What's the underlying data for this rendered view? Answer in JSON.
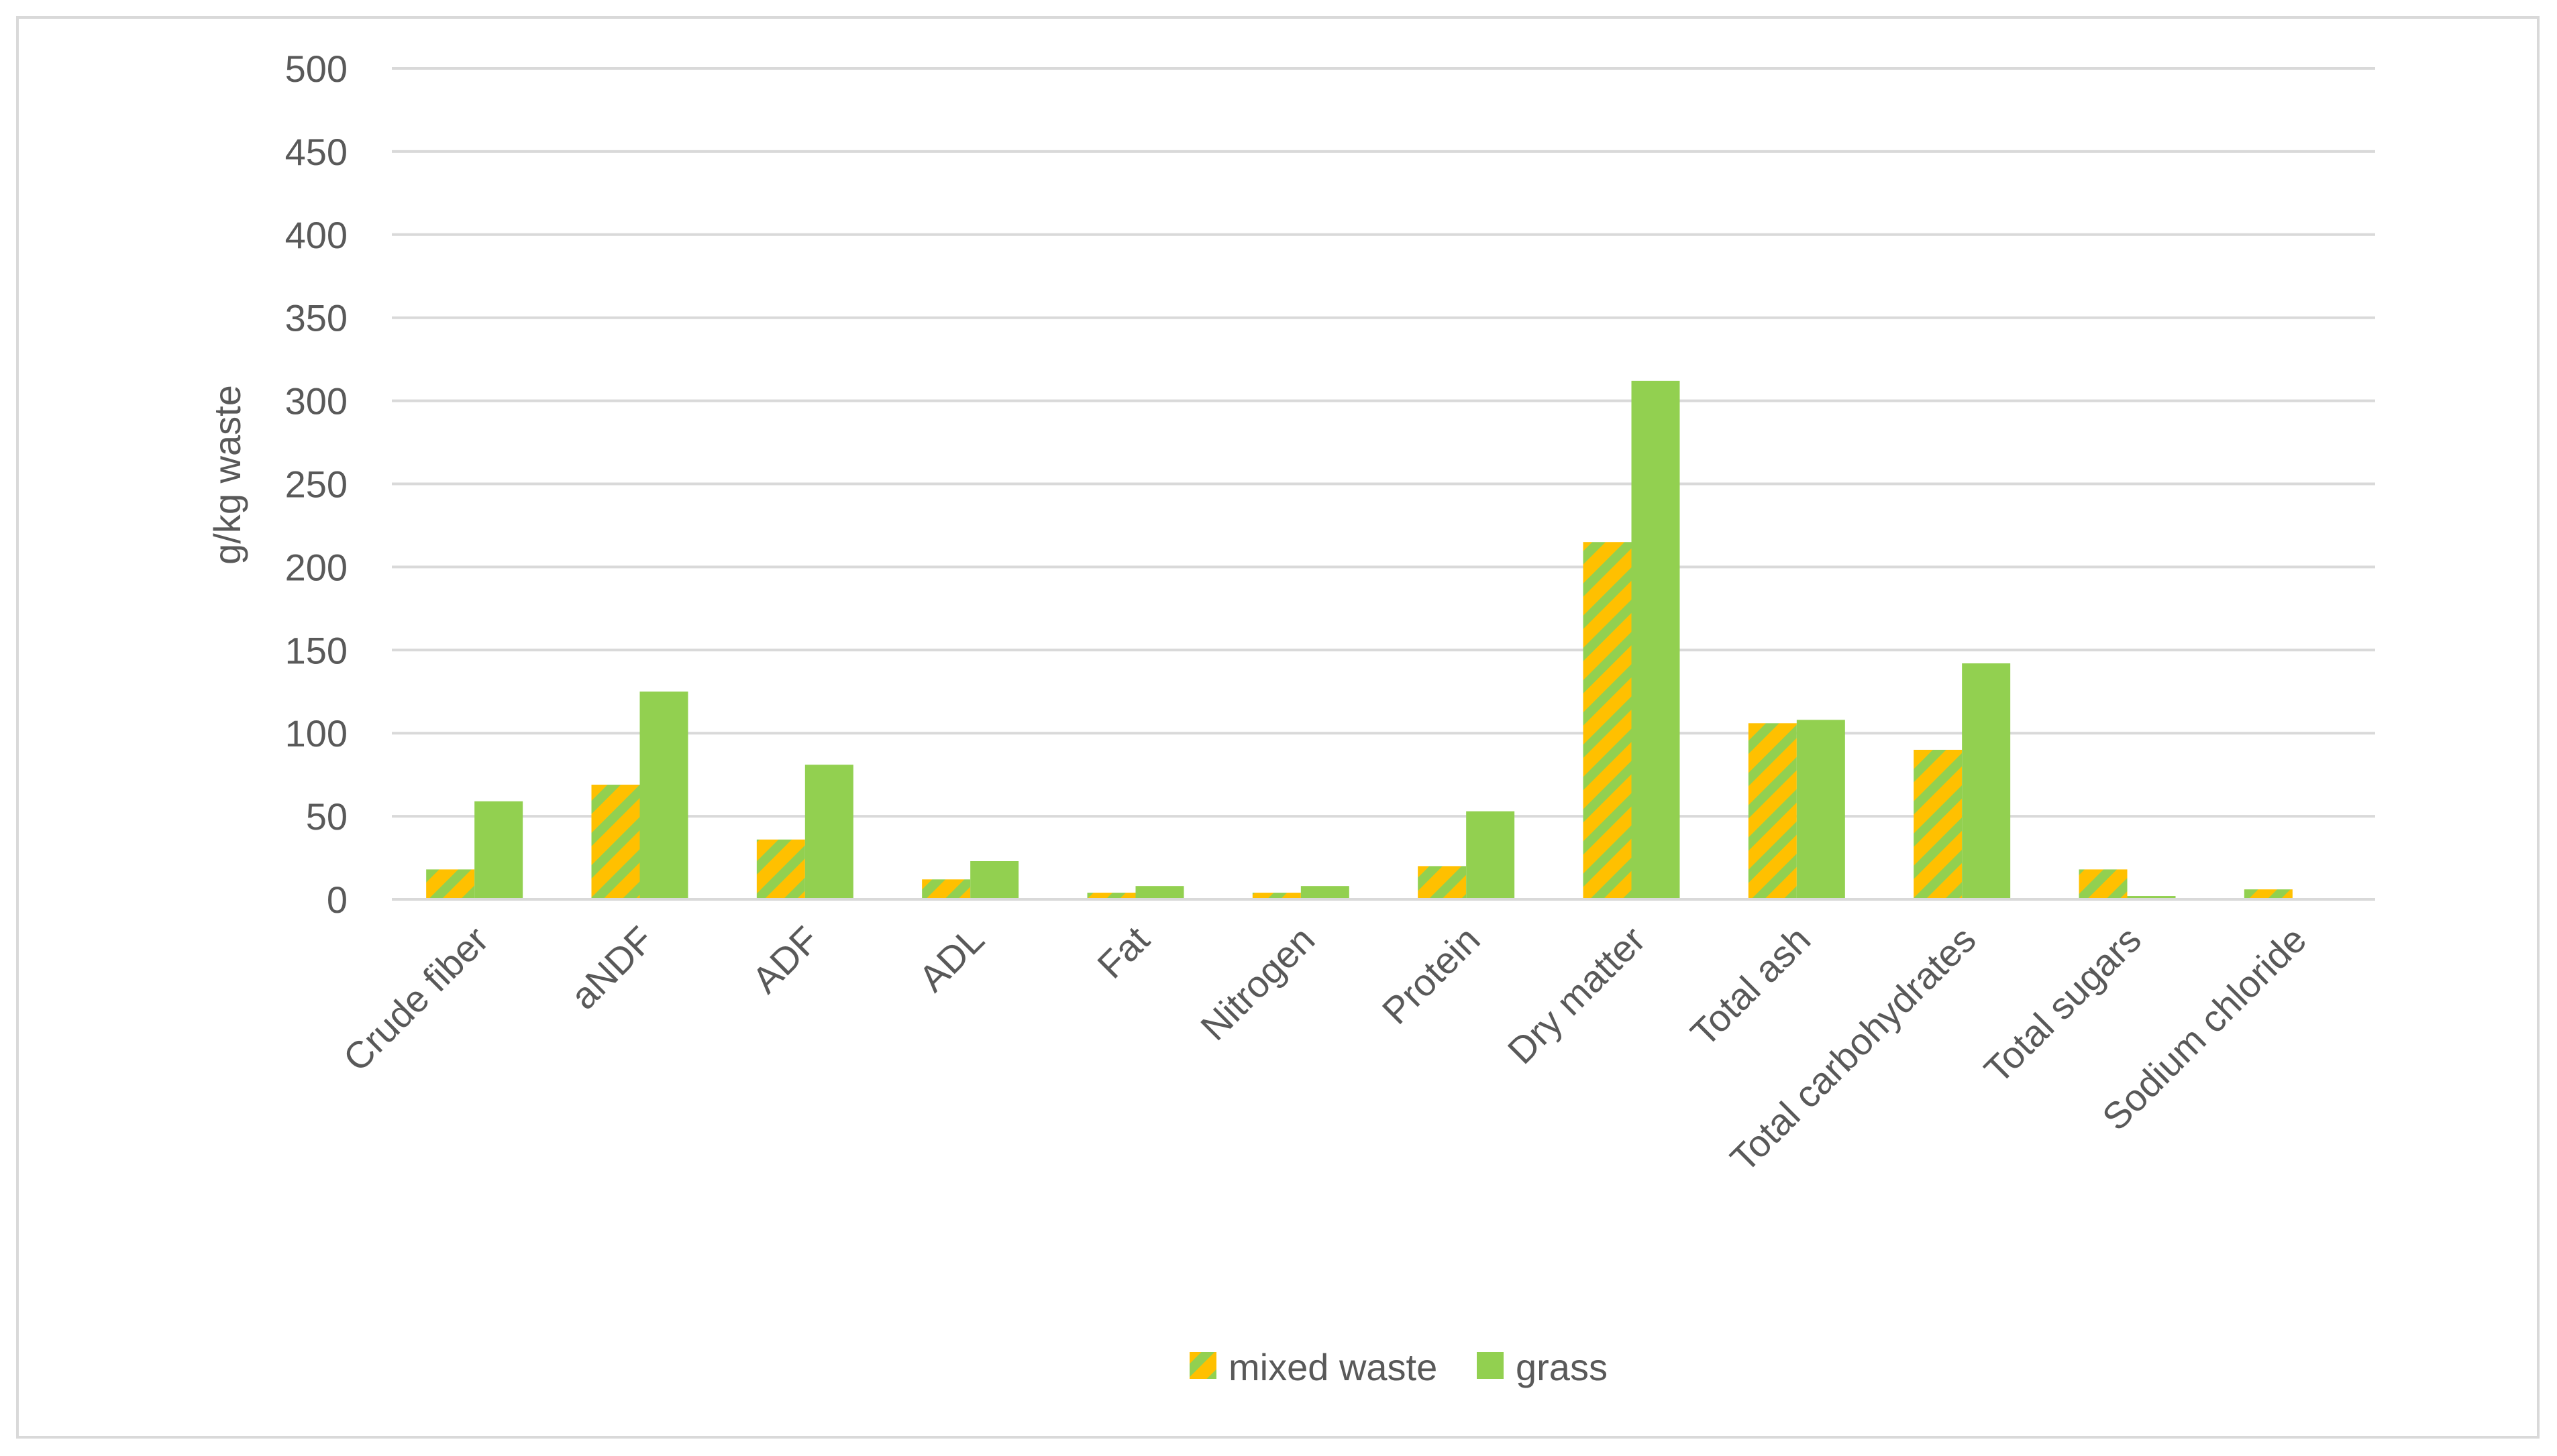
{
  "chart_data": {
    "type": "bar",
    "title": "",
    "xlabel": "",
    "ylabel": "g/kg waste",
    "ylim": [
      0,
      500
    ],
    "yticks": [
      0,
      50,
      100,
      150,
      200,
      250,
      300,
      350,
      400,
      450,
      500
    ],
    "grid": true,
    "legend_position": "bottom",
    "categories": [
      "Crude fiber",
      "aNDF",
      "ADF",
      "ADL",
      "Fat",
      "Nitrogen",
      "Protein",
      "Dry matter",
      "Total ash",
      "Total carbohydrates",
      "Total sugars",
      "Sodium chloride"
    ],
    "series": [
      {
        "name": "mixed waste",
        "values": [
          18,
          69,
          36,
          12,
          4,
          4,
          20,
          215,
          106,
          90,
          18,
          6
        ],
        "color": "#ffc000",
        "stripe_color": "#92d050",
        "pattern": "diagonal-stripes"
      },
      {
        "name": "grass",
        "values": [
          59,
          125,
          81,
          23,
          8,
          8,
          53,
          312,
          108,
          142,
          2,
          0
        ],
        "color": "#92d050"
      }
    ]
  }
}
